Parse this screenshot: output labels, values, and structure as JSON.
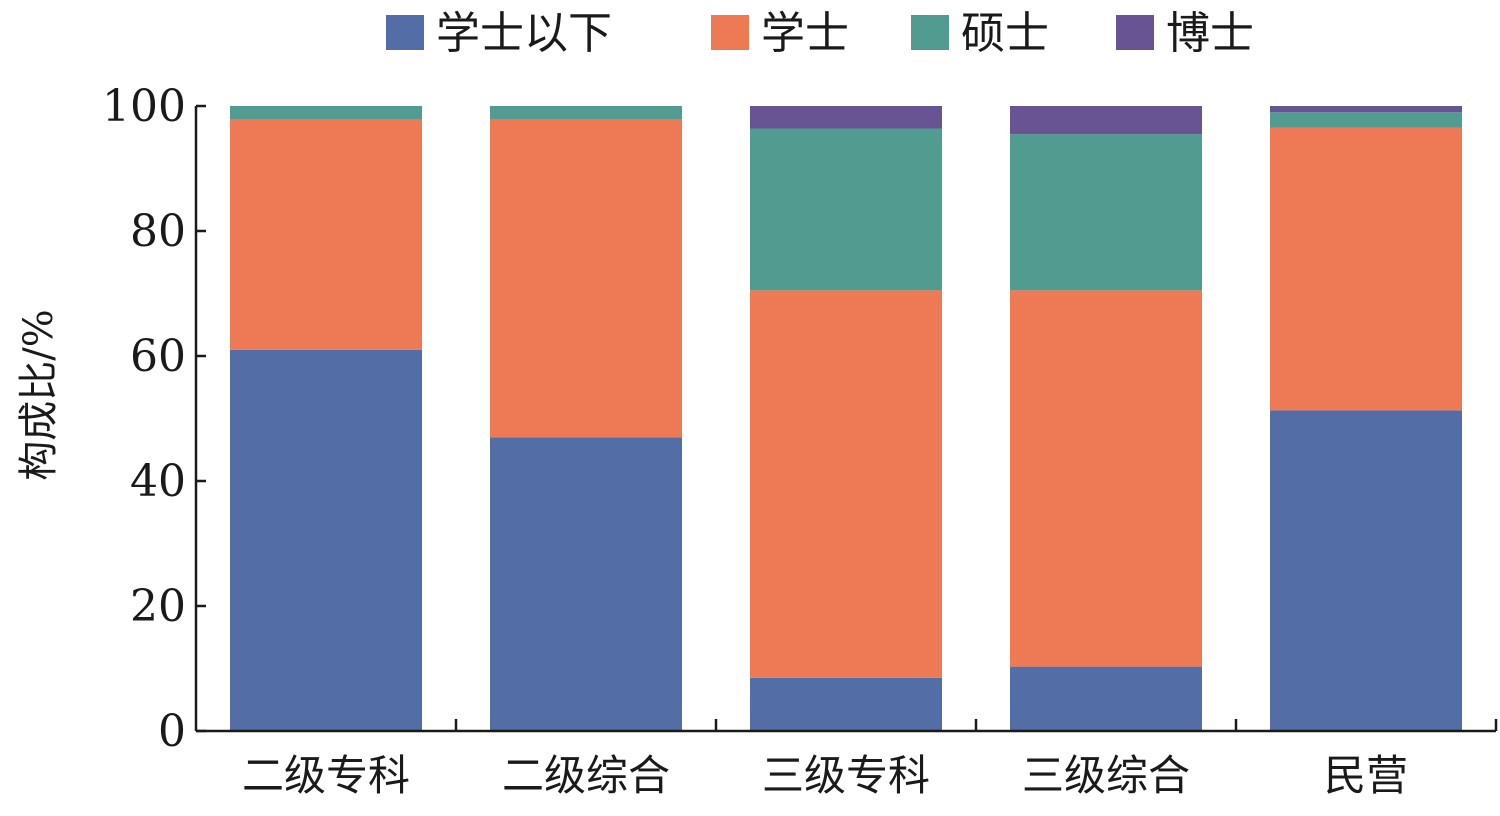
{
  "chart_data": {
    "type": "bar",
    "stacked": true,
    "title": "",
    "xlabel": "",
    "ylabel": "构成比/%",
    "ylim": [
      0,
      100
    ],
    "yticks": [
      0,
      20,
      40,
      60,
      80,
      100
    ],
    "grid": false,
    "legend_position": "top",
    "categories": [
      "二级专科",
      "二级综合",
      "三级专科",
      "三级综合",
      "民营"
    ],
    "series": [
      {
        "name": "学士以下",
        "color": "#536DA6",
        "values": [
          61.0,
          47.0,
          8.5,
          10.3,
          51.3
        ]
      },
      {
        "name": "学士",
        "color": "#EE7A55",
        "values": [
          36.8,
          50.8,
          62.0,
          60.2,
          45.2
        ]
      },
      {
        "name": "硕士",
        "color": "#519B90",
        "values": [
          2.2,
          2.2,
          25.9,
          25.0,
          2.5
        ]
      },
      {
        "name": "博士",
        "color": "#695493",
        "values": [
          0.0,
          0.0,
          3.6,
          4.5,
          1.0
        ]
      }
    ]
  }
}
